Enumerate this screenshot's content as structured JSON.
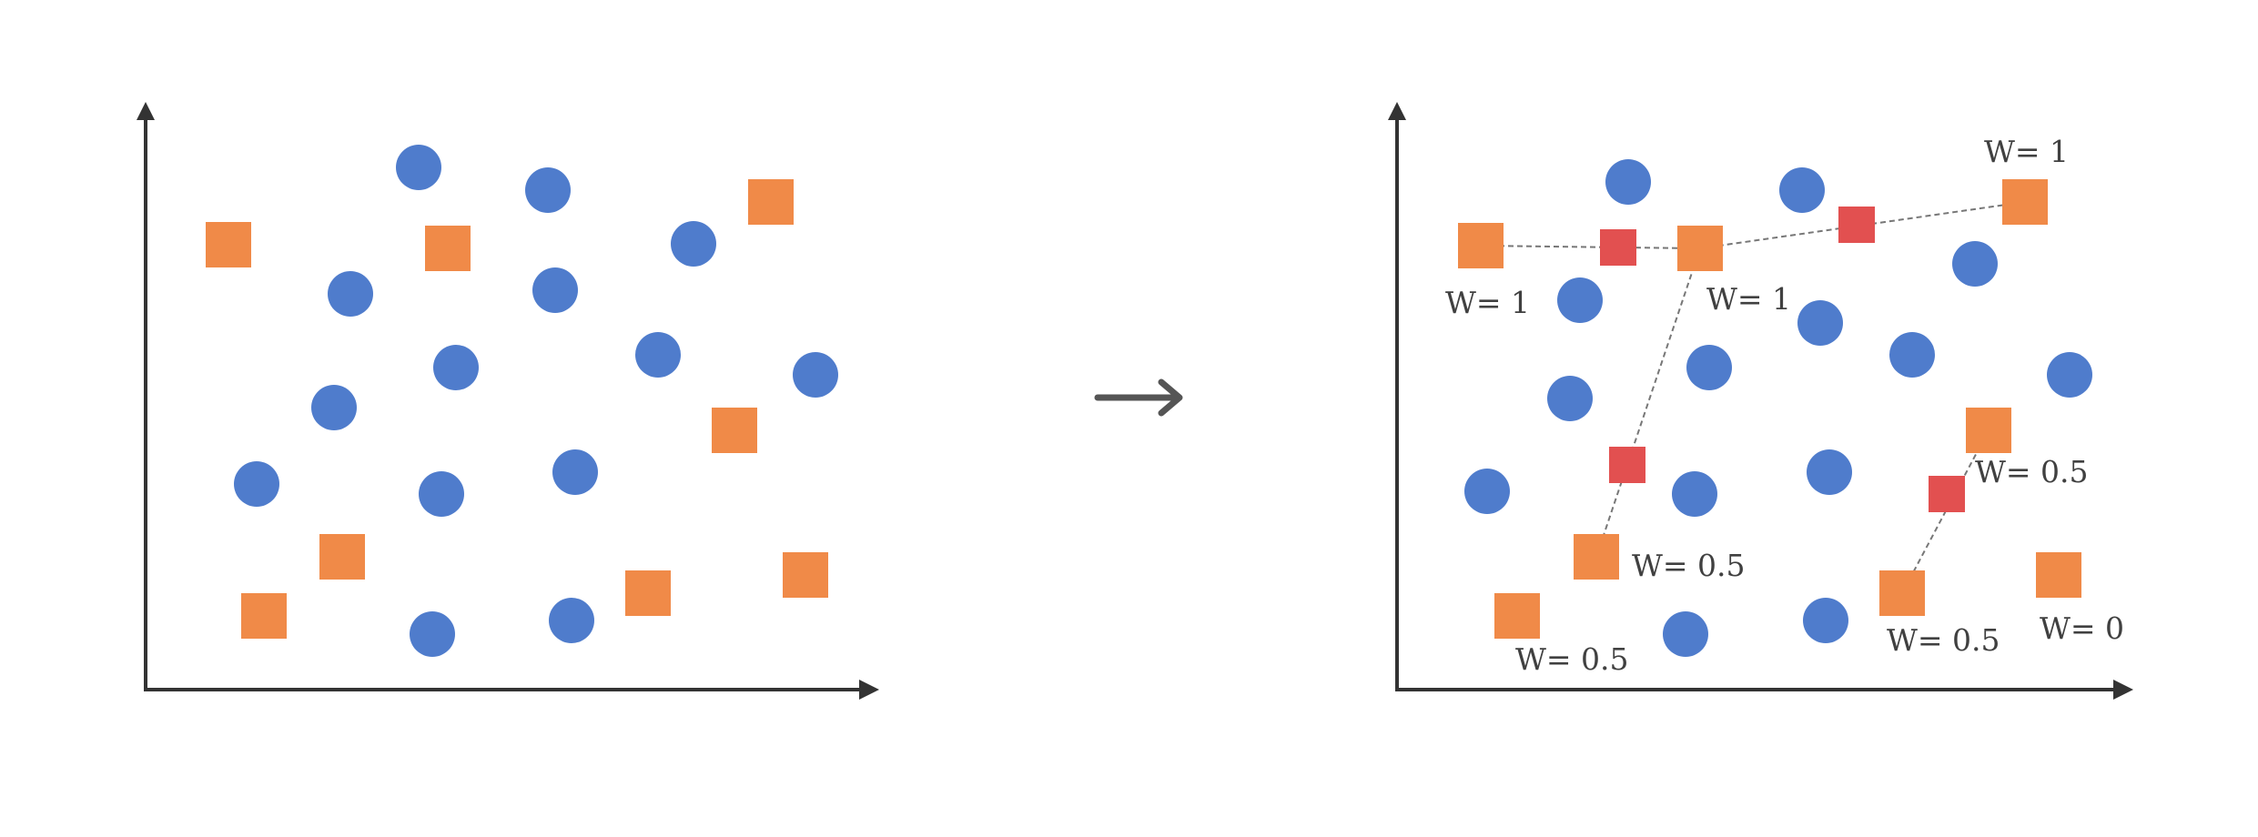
{
  "colors": {
    "circle": "#4f7ccc",
    "minority": "#f08a48",
    "synthetic": "#e25050",
    "axis": "#333333"
  },
  "labels": {
    "w1": "W= 1",
    "w2": "W= 1",
    "w3": "W= 1",
    "w4": "W= 0.5",
    "w5": "W= 0.5",
    "w6": "W= 0.5",
    "w7": "W= 0.5",
    "w8": "W= 0"
  }
}
